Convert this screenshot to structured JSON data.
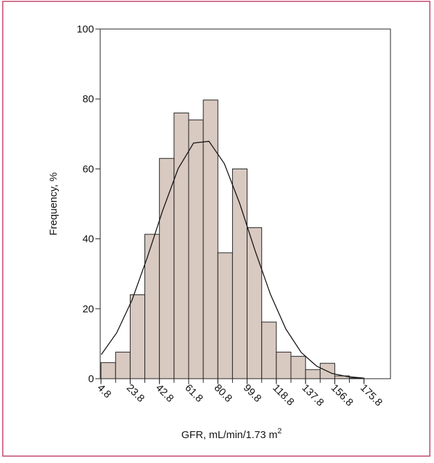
{
  "chart_data": {
    "type": "histogram",
    "xlabel": "GFR, mL/min/1.73 m",
    "xlabel_sup": "2",
    "ylabel": "Frequency, %",
    "bins": [
      4.8,
      14.3,
      23.8,
      33.3,
      42.8,
      52.3,
      61.8,
      71.3,
      80.8,
      90.3,
      99.8,
      109.3,
      118.8,
      128.3,
      137.8,
      147.3,
      156.8,
      166.3,
      175.8
    ],
    "values": [
      4.6,
      7.6,
      24,
      41.3,
      63,
      76,
      74,
      79.7,
      36,
      60,
      43.2,
      16.2,
      7.6,
      6.4,
      2.6,
      4.4,
      0.8,
      0.2
    ],
    "color": "#d8c9c1",
    "curve": {
      "x": [
        5,
        15,
        25,
        35,
        45,
        55,
        65,
        75,
        85,
        95,
        105,
        115,
        125,
        135,
        145,
        155,
        165,
        175
      ],
      "y": [
        6.9,
        13.1,
        22.5,
        34.8,
        48.2,
        60.1,
        67.4,
        67.9,
        61.5,
        50.1,
        36.6,
        24.1,
        14.2,
        7.5,
        3.6,
        1.5,
        0.6,
        0.2
      ]
    },
    "xlim": [
      4.3,
      193
    ],
    "ylim": [
      0,
      100
    ],
    "xticks": [
      4.8,
      23.8,
      42.8,
      61.8,
      80.8,
      99.8,
      118.8,
      137.8,
      156.8,
      175.8
    ],
    "yticks": [
      0,
      20,
      40,
      60,
      80,
      100
    ]
  }
}
